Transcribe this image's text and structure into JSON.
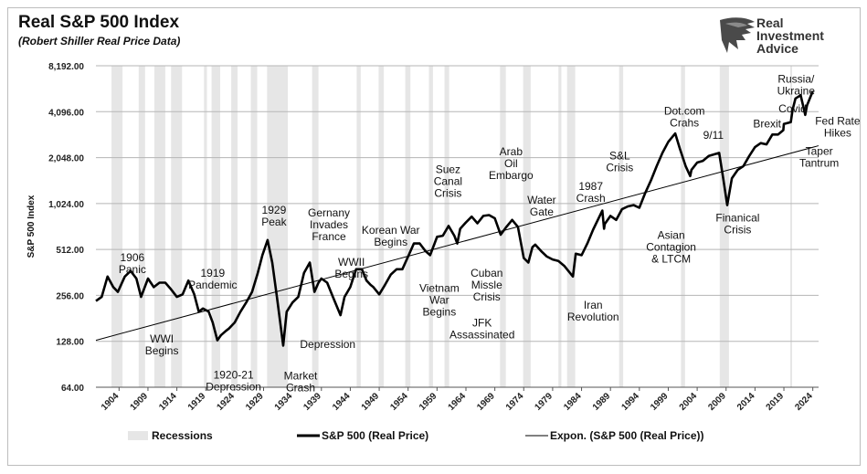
{
  "header": {
    "title": "Real S&P 500 Index",
    "subtitle": "(Robert Shiller Real Price Data)",
    "brand": [
      "Real",
      "Investment",
      "Advice"
    ]
  },
  "colors": {
    "series": "#000000",
    "trend": "#000000",
    "recession": "#e6e6e6",
    "grid": "#b5b5b5"
  },
  "chart_data": {
    "type": "line",
    "y_scale": "log2",
    "ylabel": "S&P 500 Index",
    "ylim": [
      64,
      8192
    ],
    "xlim": [
      1900,
      2025
    ],
    "y_ticks": [
      "64.00",
      "128.00",
      "256.00",
      "512.00",
      "1,024.00",
      "2,048.00",
      "4,096.00",
      "8,192.00"
    ],
    "y_tick_values": [
      64,
      128,
      256,
      512,
      1024,
      2048,
      4096,
      8192
    ],
    "x_ticks": [
      "1904",
      "1909",
      "1914",
      "1919",
      "1924",
      "1929",
      "1934",
      "1939",
      "1944",
      "1949",
      "1954",
      "1959",
      "1964",
      "1969",
      "1974",
      "1979",
      "1984",
      "1989",
      "1994",
      "1999",
      "2004",
      "2009",
      "2014",
      "2019",
      "2024"
    ],
    "grid": "horizontal",
    "legend_position": "bottom",
    "legend": [
      "Recessions",
      "S&P 500 (Real Price)",
      "Expon. (S&P 500 (Real Price))"
    ],
    "recessions": [
      [
        1902.7,
        1904.6
      ],
      [
        1907.4,
        1908.5
      ],
      [
        1910.1,
        1912.0
      ],
      [
        1913.0,
        1914.9
      ],
      [
        1918.7,
        1919.2
      ],
      [
        1920.0,
        1921.5
      ],
      [
        1923.4,
        1924.5
      ],
      [
        1926.8,
        1927.9
      ],
      [
        1929.6,
        1933.2
      ],
      [
        1937.4,
        1938.5
      ],
      [
        1945.1,
        1945.8
      ],
      [
        1948.9,
        1949.8
      ],
      [
        1953.5,
        1954.4
      ],
      [
        1957.6,
        1958.3
      ],
      [
        1960.3,
        1961.1
      ],
      [
        1969.9,
        1970.9
      ],
      [
        1973.9,
        1975.2
      ],
      [
        1980.0,
        1980.5
      ],
      [
        1981.5,
        1982.9
      ],
      [
        1990.5,
        1991.2
      ],
      [
        2001.2,
        2001.9
      ],
      [
        2007.9,
        2009.5
      ],
      [
        2020.1,
        2020.4
      ]
    ],
    "series": [
      {
        "name": "S&P 500 (Real Price)",
        "x": [
          1900,
          1901,
          1902,
          1903,
          1903.8,
          1905,
          1906,
          1907,
          1907.8,
          1909,
          1910,
          1911,
          1912,
          1913,
          1914,
          1915,
          1916,
          1917,
          1917.8,
          1918.5,
          1919.5,
          1920.2,
          1921,
          1921.6,
          1922.5,
          1923,
          1924,
          1925,
          1926,
          1927,
          1928,
          1928.8,
          1929.7,
          1930.5,
          1931.3,
          1932.4,
          1933,
          1934,
          1935,
          1936,
          1937,
          1937.8,
          1938.5,
          1939,
          1940,
          1941,
          1942.3,
          1943,
          1944,
          1945,
          1946,
          1946.8,
          1947.5,
          1948,
          1949,
          1950,
          1951,
          1952,
          1953,
          1954,
          1955,
          1956,
          1957,
          1957.8,
          1958.5,
          1959,
          1960,
          1961,
          1962,
          1962.5,
          1963,
          1964,
          1965,
          1966,
          1967,
          1968,
          1969,
          1970,
          1971,
          1972,
          1973,
          1974,
          1974.8,
          1975.5,
          1976,
          1977,
          1978,
          1979,
          1980,
          1981,
          1982.5,
          1983,
          1984,
          1985,
          1986,
          1987.6,
          1987.9,
          1988,
          1989,
          1990,
          1991,
          1992,
          1993,
          1994,
          1995,
          1996,
          1997,
          1998,
          1999,
          2000.2,
          2001,
          2002,
          2002.8,
          2003,
          2004,
          2005,
          2006,
          2007.8,
          2008.5,
          2009.2,
          2010,
          2011,
          2012,
          2013,
          2014,
          2015,
          2016,
          2017,
          2018,
          2018.9,
          2019,
          2020.2,
          2020.5,
          2021,
          2021.9,
          2022.7,
          2023,
          2024
        ],
        "values": [
          235,
          250,
          340,
          290,
          270,
          340,
          370,
          330,
          250,
          330,
          290,
          310,
          310,
          280,
          250,
          260,
          320,
          260,
          200,
          210,
          200,
          170,
          130,
          140,
          150,
          155,
          170,
          200,
          230,
          270,
          360,
          470,
          590,
          420,
          250,
          120,
          200,
          230,
          250,
          360,
          420,
          270,
          310,
          330,
          310,
          250,
          190,
          250,
          290,
          380,
          380,
          320,
          300,
          290,
          260,
          300,
          350,
          380,
          380,
          460,
          560,
          560,
          500,
          470,
          550,
          620,
          630,
          730,
          630,
          560,
          700,
          770,
          840,
          760,
          850,
          860,
          820,
          640,
          720,
          800,
          720,
          450,
          420,
          530,
          550,
          500,
          460,
          440,
          430,
          400,
          340,
          480,
          470,
          560,
          690,
          920,
          700,
          750,
          850,
          800,
          940,
          980,
          1000,
          960,
          1200,
          1450,
          1800,
          2200,
          2600,
          2950,
          2350,
          1800,
          1550,
          1700,
          1900,
          1950,
          2100,
          2200,
          1500,
          1000,
          1500,
          1700,
          1800,
          2100,
          2400,
          2550,
          2500,
          2900,
          2900,
          3100,
          3400,
          3500,
          4200,
          5000,
          5250,
          3900,
          4500,
          5600
        ]
      },
      {
        "name": "Expon. (S&P 500 (Real Price))",
        "x": [
          1900,
          2025
        ],
        "values": [
          130,
          2450
        ]
      }
    ],
    "annotations": [
      {
        "lines": [
          "1906",
          "Panic"
        ],
        "x": 1906.3,
        "y": 430
      },
      {
        "lines": [
          "WWI",
          "Begins"
        ],
        "x": 1911.4,
        "y": 126
      },
      {
        "lines": [
          "1919",
          "Pandemic"
        ],
        "x": 1920.2,
        "y": 340
      },
      {
        "lines": [
          "1920-21",
          "Depression"
        ],
        "x": 1923.8,
        "y": 73
      },
      {
        "lines": [
          "1929",
          "Peak"
        ],
        "x": 1930.8,
        "y": 880
      },
      {
        "lines": [
          "Market",
          "Crash"
        ],
        "x": 1935.4,
        "y": 72
      },
      {
        "lines": [
          "Depression"
        ],
        "x": 1940.1,
        "y": 116
      },
      {
        "lines": [
          "Gernany",
          "Invades",
          "France"
        ],
        "x": 1940.3,
        "y": 840
      },
      {
        "lines": [
          "WWII",
          "Begins"
        ],
        "x": 1944.2,
        "y": 400
      },
      {
        "lines": [
          "Korean War",
          "Begins"
        ],
        "x": 1951.0,
        "y": 650
      },
      {
        "lines": [
          "Vietnam",
          "War",
          "Begins"
        ],
        "x": 1959.4,
        "y": 270
      },
      {
        "lines": [
          "Suez",
          "Canal",
          "Crisis"
        ],
        "x": 1960.9,
        "y": 1620
      },
      {
        "lines": [
          "Cuban",
          "Missle",
          "Crisis"
        ],
        "x": 1967.6,
        "y": 340
      },
      {
        "lines": [
          "JFK",
          "Assassinated"
        ],
        "x": 1966.8,
        "y": 160
      },
      {
        "lines": [
          "Arab",
          "Oil",
          "Embargo"
        ],
        "x": 1971.8,
        "y": 2120
      },
      {
        "lines": [
          "Water",
          "Gate"
        ],
        "x": 1977.1,
        "y": 1020
      },
      {
        "lines": [
          "1987",
          "Crash"
        ],
        "x": 1985.6,
        "y": 1260
      },
      {
        "lines": [
          "S&L",
          "Crisis"
        ],
        "x": 1990.6,
        "y": 2000
      },
      {
        "lines": [
          "Iran",
          "Revolution"
        ],
        "x": 1986.0,
        "y": 210
      },
      {
        "lines": [
          "Asian",
          "Contagion",
          "& LTCM"
        ],
        "x": 1999.5,
        "y": 600
      },
      {
        "lines": [
          "Dot.com",
          "Crahs"
        ],
        "x": 2001.8,
        "y": 3920
      },
      {
        "lines": [
          "9/11"
        ],
        "x": 2006.8,
        "y": 2720
      },
      {
        "lines": [
          "Finanical",
          "Crisis"
        ],
        "x": 2011.0,
        "y": 780
      },
      {
        "lines": [
          "Brexit"
        ],
        "x": 2016.1,
        "y": 3240
      },
      {
        "lines": [
          "Covid"
        ],
        "x": 2020.5,
        "y": 4050
      },
      {
        "lines": [
          "Russia/",
          "Ukraine"
        ],
        "x": 2021.1,
        "y": 6330
      },
      {
        "lines": [
          "Fed Rate",
          "Hikes"
        ],
        "x": 2028.3,
        "y": 3370
      },
      {
        "lines": [
          "Taper",
          "Tantrum"
        ],
        "x": 2025.1,
        "y": 2140
      }
    ]
  }
}
